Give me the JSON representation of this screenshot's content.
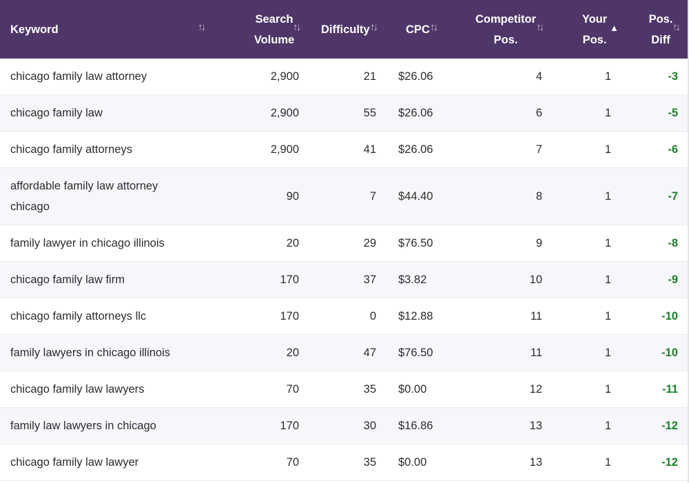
{
  "columns": {
    "keyword": "Keyword",
    "search_volume": "Search\nVolume",
    "difficulty": "Difficulty",
    "cpc": "CPC",
    "competitor_pos": "Competitor\nPos.",
    "your_pos": "Your\nPos.",
    "pos_diff": "Pos.\nDiff"
  },
  "sort": {
    "column": "your_pos",
    "direction": "ascending",
    "icons": {
      "inactive": "sort-updown-icon",
      "active": "sort-asc-triangle-icon"
    }
  },
  "colors": {
    "header_bg": "#4f3668",
    "header_text": "#ffffff",
    "row_alt_bg": "#f6f7fa",
    "positive_diff": "#1e7e2a"
  },
  "rows": [
    {
      "keyword": "chicago family law attorney",
      "search_volume": "2,900",
      "difficulty": "21",
      "cpc": "$26.06",
      "competitor_pos": "4",
      "your_pos": "1",
      "pos_diff": "-3"
    },
    {
      "keyword": "chicago family law",
      "search_volume": "2,900",
      "difficulty": "55",
      "cpc": "$26.06",
      "competitor_pos": "6",
      "your_pos": "1",
      "pos_diff": "-5"
    },
    {
      "keyword": "chicago family attorneys",
      "search_volume": "2,900",
      "difficulty": "41",
      "cpc": "$26.06",
      "competitor_pos": "7",
      "your_pos": "1",
      "pos_diff": "-6"
    },
    {
      "keyword": "affordable family law attorney chicago",
      "search_volume": "90",
      "difficulty": "7",
      "cpc": "$44.40",
      "competitor_pos": "8",
      "your_pos": "1",
      "pos_diff": "-7"
    },
    {
      "keyword": "family lawyer in chicago illinois",
      "search_volume": "20",
      "difficulty": "29",
      "cpc": "$76.50",
      "competitor_pos": "9",
      "your_pos": "1",
      "pos_diff": "-8"
    },
    {
      "keyword": "chicago family law firm",
      "search_volume": "170",
      "difficulty": "37",
      "cpc": "$3.82",
      "competitor_pos": "10",
      "your_pos": "1",
      "pos_diff": "-9"
    },
    {
      "keyword": "chicago family attorneys llc",
      "search_volume": "170",
      "difficulty": "0",
      "cpc": "$12.88",
      "competitor_pos": "11",
      "your_pos": "1",
      "pos_diff": "-10"
    },
    {
      "keyword": "family lawyers in chicago illinois",
      "search_volume": "20",
      "difficulty": "47",
      "cpc": "$76.50",
      "competitor_pos": "11",
      "your_pos": "1",
      "pos_diff": "-10"
    },
    {
      "keyword": "chicago family law lawyers",
      "search_volume": "70",
      "difficulty": "35",
      "cpc": "$0.00",
      "competitor_pos": "12",
      "your_pos": "1",
      "pos_diff": "-11"
    },
    {
      "keyword": "family law lawyers in chicago",
      "search_volume": "170",
      "difficulty": "30",
      "cpc": "$16.86",
      "competitor_pos": "13",
      "your_pos": "1",
      "pos_diff": "-12"
    },
    {
      "keyword": "chicago family law lawyer",
      "search_volume": "70",
      "difficulty": "35",
      "cpc": "$0.00",
      "competitor_pos": "13",
      "your_pos": "1",
      "pos_diff": "-12"
    }
  ]
}
